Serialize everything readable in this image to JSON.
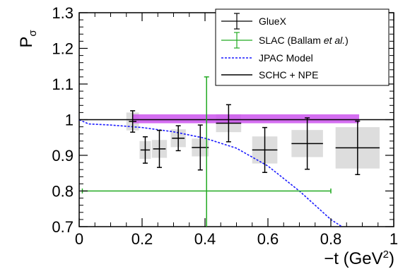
{
  "chart_data": {
    "type": "scatter",
    "title": "",
    "xlabel_main": "−t (GeV",
    "xlabel_sup": "2",
    "xlabel_close": ")",
    "ylabel_main": "P",
    "ylabel_sub": "σ",
    "xlim": [
      0,
      1
    ],
    "ylim": [
      0.7,
      1.3
    ],
    "x_ticks": [
      0,
      0.2,
      0.4,
      0.6,
      0.8,
      1
    ],
    "x_tick_labels": [
      "0",
      "0.2",
      "0.4",
      "0.6",
      "0.8",
      "1"
    ],
    "y_ticks": [
      0.7,
      0.8,
      0.9,
      1,
      1.1,
      1.2,
      1.3
    ],
    "y_tick_labels": [
      "0.7",
      "0.8",
      "0.9",
      "1",
      "1.1",
      "1.2",
      "1.3"
    ],
    "grid": false,
    "legend_position": "top-right",
    "series": [
      {
        "name": "GlueX",
        "kind": "points",
        "color": "#000000",
        "points": [
          {
            "x": 0.17,
            "y": 0.995,
            "xerr": 0.012,
            "yerr": 0.03,
            "sys_x": 0.02,
            "sys_y": 0.025
          },
          {
            "x": 0.21,
            "y": 0.915,
            "xerr": 0.015,
            "yerr": 0.037,
            "sys_x": 0.018,
            "sys_y": 0.025
          },
          {
            "x": 0.255,
            "y": 0.918,
            "xerr": 0.02,
            "yerr": 0.052,
            "sys_x": 0.024,
            "sys_y": 0.025
          },
          {
            "x": 0.315,
            "y": 0.948,
            "xerr": 0.02,
            "yerr": 0.035,
            "sys_x": 0.024,
            "sys_y": 0.025
          },
          {
            "x": 0.385,
            "y": 0.922,
            "xerr": 0.027,
            "yerr": 0.063,
            "sys_x": 0.027,
            "sys_y": 0.025
          },
          {
            "x": 0.475,
            "y": 0.99,
            "xerr": 0.04,
            "yerr": 0.052,
            "sys_x": 0.04,
            "sys_y": 0.025
          },
          {
            "x": 0.59,
            "y": 0.915,
            "xerr": 0.04,
            "yerr": 0.063,
            "sys_x": 0.04,
            "sys_y": 0.038
          },
          {
            "x": 0.725,
            "y": 0.933,
            "xerr": 0.05,
            "yerr": 0.072,
            "sys_x": 0.05,
            "sys_y": 0.038
          },
          {
            "x": 0.885,
            "y": 0.921,
            "xerr": 0.07,
            "yerr": 0.075,
            "sys_x": 0.07,
            "sys_y": 0.058
          }
        ]
      },
      {
        "name": "SLAC (Ballam ",
        "name_italic": "et al.",
        "name_end": ")",
        "kind": "points",
        "color": "#22aa22",
        "points": [
          {
            "x": 0.405,
            "y": 0.8,
            "xerr_low": 0.395,
            "xerr_high": 0.395,
            "yerr_low": 0.1,
            "yerr_high": 0.32
          }
        ]
      },
      {
        "name": "JPAC Model",
        "kind": "dashed-line",
        "color": "#1a1aff",
        "x": [
          0.0,
          0.03,
          0.1,
          0.2,
          0.3,
          0.4,
          0.5,
          0.6,
          0.7,
          0.75,
          0.8,
          0.835
        ],
        "y": [
          1.0,
          0.988,
          0.985,
          0.978,
          0.966,
          0.948,
          0.92,
          0.87,
          0.8,
          0.76,
          0.72,
          0.7
        ]
      },
      {
        "name": "SCHC + NPE",
        "kind": "line",
        "color": "#000000",
        "x": [
          0,
          1
        ],
        "y": [
          1,
          1
        ]
      }
    ],
    "band": {
      "color": "#cc55ee",
      "x_start": 0.17,
      "x_end": 0.89,
      "y_low": 0.99,
      "y_high": 1.015
    },
    "sys_box_color": "#dddddd"
  }
}
